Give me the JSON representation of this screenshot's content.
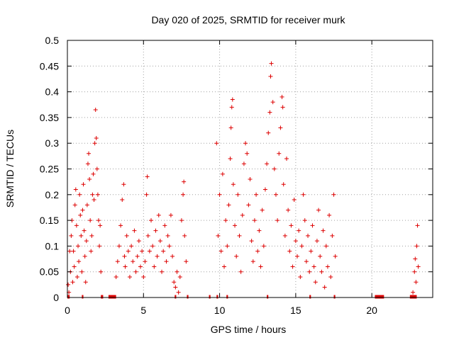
{
  "chart_data": {
    "type": "scatter",
    "title": "Day 020 of 2025, SRMTID for receiver murk",
    "xlabel": "GPS time / hours",
    "ylabel": "SRMTID / TECUs",
    "xlim": [
      0,
      24
    ],
    "ylim": [
      0,
      0.5
    ],
    "x_ticks": [
      0,
      5,
      10,
      15,
      20
    ],
    "y_ticks": [
      0,
      0.05,
      0.1,
      0.15,
      0.2,
      0.25,
      0.3,
      0.35,
      0.4,
      0.45,
      0.5
    ],
    "grid": true,
    "marker": "+",
    "color": "#dd0000",
    "series": [
      {
        "values": [
          [
            0.05,
            0.025
          ],
          [
            0.1,
            0.01
          ],
          [
            0.15,
            0.09
          ],
          [
            0.2,
            0.05
          ],
          [
            0.25,
            0.12
          ],
          [
            0.3,
            0.15
          ],
          [
            0.35,
            0.03
          ],
          [
            0.4,
            0.09
          ],
          [
            0.45,
            0.06
          ],
          [
            0.5,
            0.18
          ],
          [
            0.55,
            0.21
          ],
          [
            0.6,
            0.14
          ],
          [
            0.65,
            0.04
          ],
          [
            0.7,
            0.1
          ],
          [
            0.75,
            0.07
          ],
          [
            0.8,
            0.2
          ],
          [
            0.85,
            0.16
          ],
          [
            0.9,
            0.12
          ],
          [
            0.95,
            0.05
          ],
          [
            1.0,
            0.17
          ],
          [
            1.05,
            0.22
          ],
          [
            1.1,
            0.13
          ],
          [
            1.15,
            0.08
          ],
          [
            1.2,
            0.03
          ],
          [
            1.25,
            0.11
          ],
          [
            1.3,
            0.18
          ],
          [
            1.35,
            0.26
          ],
          [
            1.4,
            0.28
          ],
          [
            1.45,
            0.23
          ],
          [
            1.5,
            0.15
          ],
          [
            1.55,
            0.09
          ],
          [
            1.6,
            0.12
          ],
          [
            1.65,
            0.2
          ],
          [
            1.7,
            0.24
          ],
          [
            1.75,
            0.19
          ],
          [
            1.8,
            0.3
          ],
          [
            1.85,
            0.365
          ],
          [
            1.9,
            0.31
          ],
          [
            1.95,
            0.25
          ],
          [
            2.0,
            0.2
          ],
          [
            2.05,
            0.15
          ],
          [
            2.1,
            0.1
          ],
          [
            2.15,
            0.14
          ],
          [
            2.2,
            0.05
          ],
          [
            3.2,
            0.04
          ],
          [
            3.3,
            0.07
          ],
          [
            3.4,
            0.1
          ],
          [
            3.5,
            0.14
          ],
          [
            3.6,
            0.19
          ],
          [
            3.7,
            0.22
          ],
          [
            3.75,
            0.08
          ],
          [
            3.8,
            0.06
          ],
          [
            3.9,
            0.12
          ],
          [
            4.0,
            0.09
          ],
          [
            4.1,
            0.04
          ],
          [
            4.2,
            0.1
          ],
          [
            4.3,
            0.07
          ],
          [
            4.4,
            0.13
          ],
          [
            4.5,
            0.05
          ],
          [
            4.6,
            0.08
          ],
          [
            4.7,
            0.11
          ],
          [
            4.8,
            0.06
          ],
          [
            4.9,
            0.09
          ],
          [
            5.0,
            0.04
          ],
          [
            5.1,
            0.07
          ],
          [
            5.2,
            0.2
          ],
          [
            5.25,
            0.235
          ],
          [
            5.3,
            0.12
          ],
          [
            5.4,
            0.09
          ],
          [
            5.5,
            0.15
          ],
          [
            5.6,
            0.1
          ],
          [
            5.7,
            0.06
          ],
          [
            5.8,
            0.13
          ],
          [
            5.9,
            0.08
          ],
          [
            6.0,
            0.16
          ],
          [
            6.1,
            0.11
          ],
          [
            6.2,
            0.05
          ],
          [
            6.3,
            0.09
          ],
          [
            6.4,
            0.14
          ],
          [
            6.5,
            0.07
          ],
          [
            6.6,
            0.12
          ],
          [
            6.7,
            0.1
          ],
          [
            6.8,
            0.16
          ],
          [
            6.9,
            0.08
          ],
          [
            7.0,
            0.03
          ],
          [
            7.1,
            0.02
          ],
          [
            7.2,
            0.05
          ],
          [
            7.3,
            0.01
          ],
          [
            7.4,
            0.04
          ],
          [
            7.5,
            0.15
          ],
          [
            7.6,
            0.2
          ],
          [
            7.65,
            0.225
          ],
          [
            7.7,
            0.12
          ],
          [
            7.8,
            0.07
          ],
          [
            9.8,
            0.3
          ],
          [
            9.9,
            0.12
          ],
          [
            10.0,
            0.2
          ],
          [
            10.1,
            0.09
          ],
          [
            10.2,
            0.24
          ],
          [
            10.3,
            0.06
          ],
          [
            10.4,
            0.15
          ],
          [
            10.5,
            0.1
          ],
          [
            10.6,
            0.18
          ],
          [
            10.7,
            0.27
          ],
          [
            10.75,
            0.33
          ],
          [
            10.8,
            0.37
          ],
          [
            10.85,
            0.385
          ],
          [
            10.9,
            0.22
          ],
          [
            11.0,
            0.14
          ],
          [
            11.1,
            0.08
          ],
          [
            11.2,
            0.2
          ],
          [
            11.3,
            0.12
          ],
          [
            11.4,
            0.05
          ],
          [
            11.5,
            0.16
          ],
          [
            11.6,
            0.26
          ],
          [
            11.7,
            0.3
          ],
          [
            11.8,
            0.28
          ],
          [
            11.9,
            0.18
          ],
          [
            12.0,
            0.23
          ],
          [
            12.1,
            0.11
          ],
          [
            12.2,
            0.07
          ],
          [
            12.3,
            0.15
          ],
          [
            12.4,
            0.2
          ],
          [
            12.5,
            0.09
          ],
          [
            12.6,
            0.13
          ],
          [
            12.7,
            0.06
          ],
          [
            12.8,
            0.17
          ],
          [
            12.9,
            0.1
          ],
          [
            13.0,
            0.21
          ],
          [
            13.1,
            0.26
          ],
          [
            13.2,
            0.32
          ],
          [
            13.3,
            0.36
          ],
          [
            13.35,
            0.43
          ],
          [
            13.4,
            0.455
          ],
          [
            13.5,
            0.38
          ],
          [
            13.6,
            0.25
          ],
          [
            13.7,
            0.2
          ],
          [
            13.8,
            0.15
          ],
          [
            13.9,
            0.28
          ],
          [
            14.0,
            0.33
          ],
          [
            14.1,
            0.39
          ],
          [
            14.15,
            0.37
          ],
          [
            14.2,
            0.22
          ],
          [
            14.3,
            0.12
          ],
          [
            14.4,
            0.27
          ],
          [
            14.5,
            0.17
          ],
          [
            14.6,
            0.09
          ],
          [
            14.7,
            0.14
          ],
          [
            14.8,
            0.06
          ],
          [
            14.9,
            0.19
          ],
          [
            15.0,
            0.11
          ],
          [
            15.1,
            0.08
          ],
          [
            15.2,
            0.13
          ],
          [
            15.3,
            0.04
          ],
          [
            15.4,
            0.1
          ],
          [
            15.5,
            0.2
          ],
          [
            15.6,
            0.15
          ],
          [
            15.7,
            0.07
          ],
          [
            15.8,
            0.12
          ],
          [
            15.9,
            0.05
          ],
          [
            16.0,
            0.09
          ],
          [
            16.1,
            0.14
          ],
          [
            16.2,
            0.06
          ],
          [
            16.3,
            0.03
          ],
          [
            16.4,
            0.11
          ],
          [
            16.5,
            0.17
          ],
          [
            16.6,
            0.08
          ],
          [
            16.7,
            0.05
          ],
          [
            16.8,
            0.13
          ],
          [
            16.9,
            0.02
          ],
          [
            17.0,
            0.1
          ],
          [
            17.1,
            0.06
          ],
          [
            17.2,
            0.16
          ],
          [
            17.3,
            0.04
          ],
          [
            17.4,
            0.12
          ],
          [
            17.5,
            0.2
          ],
          [
            17.6,
            0.08
          ],
          [
            22.7,
            0.01
          ],
          [
            22.8,
            0.05
          ],
          [
            22.85,
            0.075
          ],
          [
            22.9,
            0.03
          ],
          [
            22.95,
            0.1
          ],
          [
            23.0,
            0.14
          ],
          [
            23.05,
            0.06
          ]
        ]
      }
    ],
    "zero_segments": [
      [
        0,
        0.15
      ],
      [
        0.95,
        1.05
      ],
      [
        2.2,
        2.35
      ],
      [
        2.7,
        3.2
      ],
      [
        7.05,
        7.15
      ],
      [
        7.85,
        7.95
      ],
      [
        9.3,
        9.4
      ],
      [
        9.8,
        9.9
      ],
      [
        10.45,
        10.55
      ],
      [
        13.1,
        13.2
      ],
      [
        15.9,
        16.0
      ],
      [
        17.5,
        17.6
      ],
      [
        20.2,
        20.8
      ],
      [
        22.5,
        22.95
      ]
    ]
  }
}
